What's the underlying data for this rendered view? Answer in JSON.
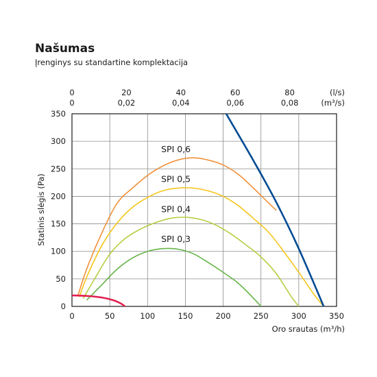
{
  "title": "Našumas",
  "subtitle": "Įrenginys su standartine komplektacija",
  "chart_data": {
    "type": "line",
    "xlabel": "Oro srautas (m³/h)",
    "ylabel": "Statinis slėgis (Pa)",
    "xlim": [
      0,
      350
    ],
    "ylim": [
      0,
      350
    ],
    "x_ticks": [
      "0",
      "50",
      "100",
      "150",
      "200",
      "250",
      "300",
      "350"
    ],
    "y_ticks": [
      "0",
      "50",
      "100",
      "150",
      "200",
      "250",
      "300",
      "350"
    ],
    "top_ls_ticks": [
      "0",
      "20",
      "40",
      "60",
      "80"
    ],
    "top_m3s_ticks": [
      "0",
      "0,02",
      "0,04",
      "0,06",
      "0,08"
    ],
    "top_ls_unit": "(l/s)",
    "top_m3s_unit": "(m³/s)",
    "grid": true,
    "series": [
      {
        "name": "SPI 0,6",
        "color": "#f0913a",
        "x": [
          8,
          20,
          40,
          60,
          80,
          100,
          120,
          140,
          160,
          180,
          200,
          220,
          240,
          260,
          270
        ],
        "y": [
          20,
          70,
          135,
          188,
          215,
          238,
          255,
          266,
          270,
          266,
          257,
          240,
          215,
          188,
          175
        ]
      },
      {
        "name": "SPI 0,5",
        "color": "#f5c518",
        "x": [
          10,
          20,
          40,
          60,
          80,
          100,
          120,
          140,
          160,
          180,
          200,
          220,
          240,
          260,
          280,
          300,
          320,
          333
        ],
        "y": [
          18,
          55,
          112,
          152,
          180,
          198,
          210,
          215,
          215,
          210,
          200,
          183,
          160,
          135,
          100,
          62,
          22,
          0
        ]
      },
      {
        "name": "SPI 0,4",
        "color": "#b3cf42",
        "x": [
          15,
          30,
          50,
          70,
          90,
          110,
          130,
          150,
          170,
          190,
          210,
          230,
          250,
          270,
          290,
          300
        ],
        "y": [
          15,
          50,
          95,
          123,
          140,
          152,
          160,
          162,
          158,
          148,
          132,
          112,
          90,
          60,
          18,
          0
        ]
      },
      {
        "name": "SPI 0,3",
        "color": "#64b446",
        "x": [
          20,
          40,
          60,
          80,
          100,
          120,
          140,
          160,
          180,
          200,
          220,
          240,
          250
        ],
        "y": [
          12,
          40,
          68,
          88,
          100,
          105,
          104,
          96,
          80,
          62,
          42,
          15,
          0
        ]
      },
      {
        "name": "",
        "color": "#004b93",
        "x": [
          204,
          240,
          270,
          300,
          333
        ],
        "y": [
          350,
          265,
          190,
          105,
          0
        ]
      },
      {
        "name": "",
        "color": "#e11f4e",
        "x": [
          0,
          20,
          40,
          55,
          65,
          70
        ],
        "y": [
          20,
          19,
          16,
          11,
          5,
          0
        ]
      }
    ],
    "annotations": [
      {
        "text": "SPI 0,6",
        "x": 118,
        "y": 280,
        "color": "#f0913a"
      },
      {
        "text": "SPI 0,5",
        "x": 118,
        "y": 226,
        "color": "#f5c518"
      },
      {
        "text": "SPI 0,4",
        "x": 118,
        "y": 171,
        "color": "#b3cf42"
      },
      {
        "text": "SPI 0,3",
        "x": 118,
        "y": 117,
        "color": "#64b446"
      }
    ]
  }
}
